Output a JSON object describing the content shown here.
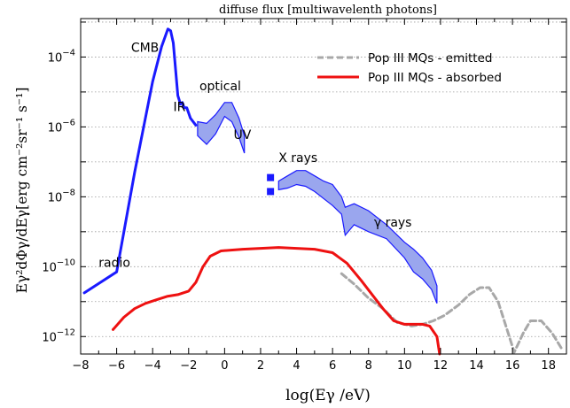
{
  "chart_data": {
    "type": "line",
    "title": "diffuse flux [multiwavelenth photons]",
    "xlabel": "log(Eγ /eV)",
    "ylabel": "Eγ²dΦγ/dEγ[erg cm⁻²sr⁻¹ s⁻¹]",
    "xlim": [
      -8,
      19
    ],
    "ylim_log10": [
      -12.5,
      -2.9
    ],
    "y_scale": "log",
    "grid": "horizontal dotted",
    "legend_position": "top-right",
    "x_ticks": [
      -8,
      -6,
      -4,
      -2,
      0,
      2,
      4,
      6,
      8,
      10,
      12,
      14,
      16,
      18
    ],
    "y_ticks": [
      {
        "exp": -4,
        "label_base": "10",
        "label_exp": "-4"
      },
      {
        "exp": -6,
        "label_base": "10",
        "label_exp": "-6"
      },
      {
        "exp": -8,
        "label_base": "10",
        "label_exp": "-8"
      },
      {
        "exp": -10,
        "label_base": "10",
        "label_exp": "-10"
      },
      {
        "exp": -12,
        "label_base": "10",
        "label_exp": "-12"
      }
    ],
    "colors": {
      "observed": "#1a1aff",
      "band_fill": "#9aa6ee",
      "emitted": "#a8a8a8",
      "absorbed": "#ee1111"
    },
    "annotations": [
      {
        "text": "CMB",
        "x": -5.2,
        "y_log": -3.85
      },
      {
        "text": "IR",
        "x": -2.85,
        "y_log": -5.55
      },
      {
        "text": "optical",
        "x": -1.4,
        "y_log": -4.95
      },
      {
        "text": "UV",
        "x": 0.5,
        "y_log": -6.35
      },
      {
        "text": "X rays",
        "x": 3.0,
        "y_log": -7.0
      },
      {
        "text": "γ rays",
        "x": 8.3,
        "y_log": -8.85
      },
      {
        "text": "radio",
        "x": -7.0,
        "y_log": -10.0
      }
    ],
    "series": [
      {
        "name": "Pop III MQs - emitted",
        "style": "dashed",
        "x": [
          6.5,
          7.2,
          8.0,
          8.8,
          9.6,
          10.4,
          11.0,
          11.6,
          12.2,
          13.0,
          13.6,
          14.2,
          14.7,
          15.2,
          15.7,
          16.1,
          16.6,
          17.0,
          17.6,
          18.2,
          18.8
        ],
        "y_log": [
          -10.2,
          -10.5,
          -10.9,
          -11.2,
          -11.6,
          -11.7,
          -11.65,
          -11.55,
          -11.4,
          -11.1,
          -10.8,
          -10.6,
          -10.6,
          -11.0,
          -11.8,
          -12.45,
          -11.9,
          -11.55,
          -11.55,
          -11.9,
          -12.4
        ]
      },
      {
        "name": "Pop III MQs - absorbed",
        "style": "solid",
        "x": [
          -6.2,
          -5.6,
          -5.0,
          -4.4,
          -3.8,
          -3.2,
          -2.6,
          -2.0,
          -1.6,
          -1.2,
          -0.8,
          -0.2,
          1.0,
          3.0,
          5.0,
          6.0,
          6.8,
          7.6,
          8.2,
          8.8,
          9.4,
          10.0,
          10.6,
          11.0,
          11.4,
          11.8,
          11.95
        ],
        "y_log": [
          -11.8,
          -11.45,
          -11.2,
          -11.05,
          -10.95,
          -10.85,
          -10.8,
          -10.7,
          -10.45,
          -10.0,
          -9.7,
          -9.55,
          -9.5,
          -9.45,
          -9.5,
          -9.6,
          -9.9,
          -10.4,
          -10.8,
          -11.2,
          -11.55,
          -11.65,
          -11.65,
          -11.65,
          -11.7,
          -12.0,
          -12.5
        ]
      },
      {
        "name": "observed spectrum (CMB / IR / radio)",
        "style": "solid-thick",
        "x": [
          -7.8,
          -6.0,
          -5.0,
          -4.0,
          -3.5,
          -3.15,
          -3.0,
          -2.85,
          -2.6,
          -2.45,
          -2.35,
          -2.25,
          -2.1,
          -1.9,
          -1.6
        ],
        "y_log": [
          -10.75,
          -10.15,
          -7.3,
          -4.7,
          -3.7,
          -3.2,
          -3.25,
          -3.6,
          -5.1,
          -5.35,
          -5.3,
          -5.45,
          -5.45,
          -5.75,
          -5.95
        ]
      }
    ],
    "bands": [
      {
        "name": "optical/UV band",
        "x": [
          -1.5,
          -1.0,
          -0.5,
          0.0,
          0.4,
          0.8,
          1.1
        ],
        "y_upper": [
          -5.85,
          -5.9,
          -5.65,
          -5.3,
          -5.3,
          -5.75,
          -6.25
        ],
        "y_lower": [
          -6.25,
          -6.5,
          -6.2,
          -5.7,
          -5.85,
          -6.3,
          -6.75
        ]
      },
      {
        "name": "X-ray/γ-ray band",
        "x": [
          3.0,
          3.5,
          4.0,
          4.5,
          5.0,
          5.5,
          6.0,
          6.5,
          6.7,
          7.2,
          8.0,
          9.0,
          10.0,
          10.5,
          11.0,
          11.5,
          11.8
        ],
        "y_upper": [
          -7.55,
          -7.4,
          -7.25,
          -7.25,
          -7.4,
          -7.55,
          -7.65,
          -8.0,
          -8.3,
          -8.2,
          -8.4,
          -8.8,
          -9.3,
          -9.5,
          -9.75,
          -10.1,
          -10.55
        ],
        "y_lower": [
          -7.8,
          -7.75,
          -7.65,
          -7.7,
          -7.85,
          -8.05,
          -8.25,
          -8.5,
          -9.1,
          -8.8,
          -9.0,
          -9.2,
          -9.75,
          -10.15,
          -10.35,
          -10.65,
          -11.05
        ]
      }
    ],
    "squares": [
      {
        "x": 2.55,
        "y_log": -7.45
      },
      {
        "x": 2.55,
        "y_log": -7.85
      }
    ],
    "legend": [
      {
        "label": "Pop III MQs - emitted",
        "style": "dashed"
      },
      {
        "label": "Pop III MQs - absorbed",
        "style": "solid"
      }
    ]
  }
}
